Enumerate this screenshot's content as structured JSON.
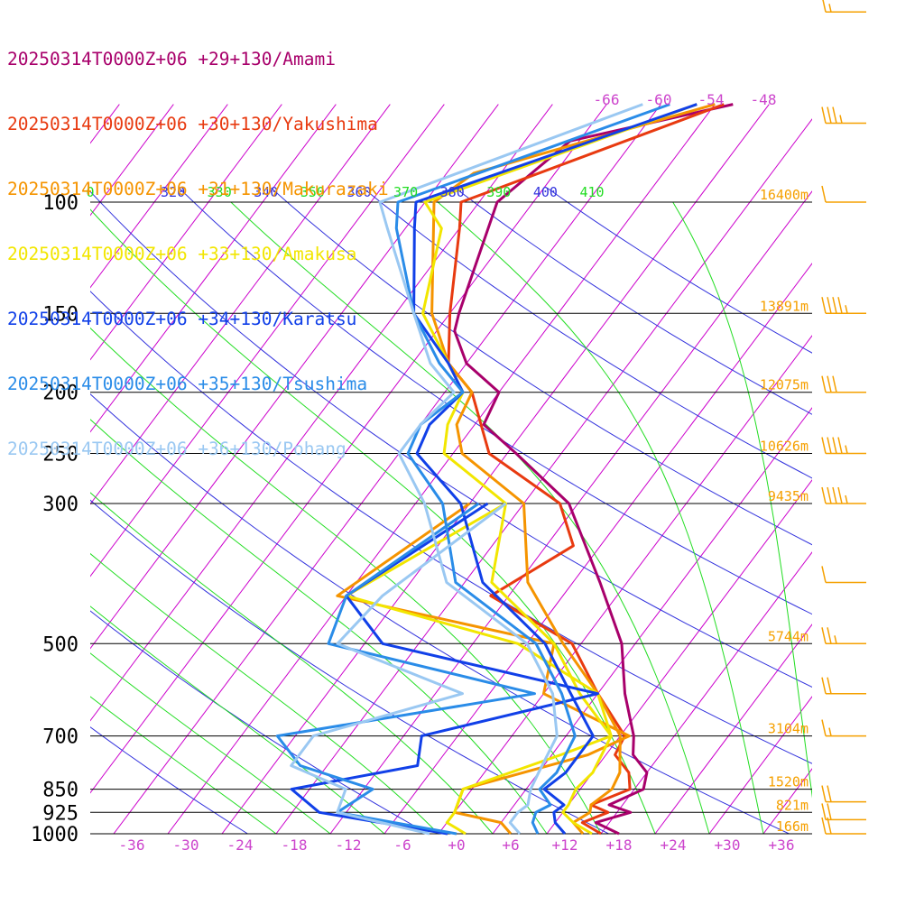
{
  "chart_data": {
    "type": "line",
    "title": "",
    "xlabel": "",
    "ylabel": "",
    "xlim": [
      -40,
      40
    ],
    "ylim": [
      1000,
      100
    ],
    "yscale": "log",
    "grid": true,
    "legend_position": "top-left",
    "pressure_ticks": [
      100,
      150,
      200,
      250,
      300,
      500,
      700,
      850,
      925,
      1000
    ],
    "pressure_tick_labels": [
      "100",
      "150",
      "200",
      "250",
      "300",
      "500",
      "700",
      "850",
      "925",
      "1000"
    ],
    "temperature_tick_labels": [
      "-36",
      "-30",
      "-24",
      "-18",
      "-12",
      "-6",
      "+0",
      "+6",
      "+12",
      "+18",
      "+24",
      "+30",
      "+36"
    ],
    "temperature_ticks": [
      -36,
      -30,
      -24,
      -18,
      -12,
      -6,
      0,
      6,
      12,
      18,
      24,
      30,
      36
    ],
    "theta_labels": [
      "0",
      "320",
      "330",
      "340",
      "350",
      "360",
      "370",
      "380",
      "390",
      "400",
      "410"
    ],
    "isotherm_labels_top": [
      "-66",
      "-60",
      "-54",
      "-48"
    ],
    "height_labels": [
      {
        "p": 100,
        "text": "16400m"
      },
      {
        "p": 150,
        "text": "13891m"
      },
      {
        "p": 200,
        "text": "12075m"
      },
      {
        "p": 250,
        "text": "10626m"
      },
      {
        "p": 300,
        "text": "9435m"
      },
      {
        "p": 500,
        "text": "5744m"
      },
      {
        "p": 700,
        "text": "3104m"
      },
      {
        "p": 850,
        "text": "1520m"
      },
      {
        "p": 925,
        "text": "821m"
      },
      {
        "p": 1000,
        "text": "166m"
      }
    ],
    "colors": {
      "isotherm": "#cc00cc",
      "dry_adiabat_blue": "#3333dd",
      "moist_adiabat_green": "#22dd22",
      "height_label": "#f5a000",
      "temp_tick_label": "#cc44cc",
      "wind_barb": "#f5a000",
      "pressure_line": "#000000"
    },
    "series": [
      {
        "name": "20250314T0000Z+06 +29+130/Amami",
        "color": "#a8006b",
        "temperature": [
          [
            1000,
            18
          ],
          [
            960,
            14.5
          ],
          [
            925,
            17.5
          ],
          [
            900,
            14.5
          ],
          [
            850,
            17
          ],
          [
            800,
            16
          ],
          [
            750,
            13
          ],
          [
            700,
            11.5
          ],
          [
            600,
            7
          ],
          [
            500,
            2.5
          ],
          [
            400,
            -5
          ],
          [
            300,
            -15
          ],
          [
            250,
            -25
          ],
          [
            225,
            -31
          ],
          [
            200,
            -32
          ],
          [
            180,
            -38
          ],
          [
            160,
            -42
          ],
          [
            150,
            -43
          ],
          [
            100,
            -48
          ],
          [
            80,
            -45
          ],
          [
            70,
            -30
          ]
        ],
        "dewpoint": []
      },
      {
        "name": "20250314T0000Z+06 +30+130/Yakushima",
        "color": "#e83a10",
        "temperature": [
          [
            1000,
            16
          ],
          [
            960,
            13
          ],
          [
            925,
            15
          ],
          [
            900,
            12.5
          ],
          [
            850,
            15.5
          ],
          [
            800,
            14
          ],
          [
            750,
            11
          ],
          [
            700,
            10.5
          ],
          [
            600,
            4
          ],
          [
            500,
            -3
          ],
          [
            420,
            -16
          ],
          [
            350,
            -11
          ],
          [
            300,
            -16
          ],
          [
            250,
            -28
          ],
          [
            200,
            -35
          ],
          [
            180,
            -40
          ],
          [
            150,
            -44
          ],
          [
            110,
            -50
          ],
          [
            100,
            -52
          ],
          [
            70,
            -31
          ]
        ],
        "dewpoint": []
      },
      {
        "name": "20250314T0000Z+06 +31+130/Makurazaki",
        "color": "#f59400",
        "temperature": [
          [
            1000,
            14
          ],
          [
            960,
            12
          ],
          [
            925,
            13
          ],
          [
            900,
            12.5
          ],
          [
            850,
            13.5
          ],
          [
            800,
            13
          ],
          [
            700,
            10
          ],
          [
            600,
            4
          ],
          [
            500,
            -4
          ],
          [
            400,
            -13
          ],
          [
            300,
            -20
          ],
          [
            250,
            -31
          ],
          [
            225,
            -34
          ],
          [
            200,
            -35
          ],
          [
            180,
            -40
          ],
          [
            150,
            -46
          ],
          [
            100,
            -55
          ],
          [
            90,
            -53
          ],
          [
            70,
            -32
          ]
        ],
        "dewpoint": [
          [
            1000,
            6
          ],
          [
            960,
            4
          ],
          [
            925,
            -2
          ],
          [
            850,
            -3
          ],
          [
            750,
            8
          ],
          [
            700,
            11
          ],
          [
            600,
            -2
          ],
          [
            500,
            -5
          ],
          [
            420,
            -33
          ],
          [
            300,
            -26
          ]
        ]
      },
      {
        "name": "20250314T0000Z+06 +33+130/Amakusa",
        "color": "#f2e600",
        "temperature": [
          [
            1000,
            15
          ],
          [
            960,
            12
          ],
          [
            925,
            10
          ],
          [
            900,
            10
          ],
          [
            850,
            9.5
          ],
          [
            800,
            10
          ],
          [
            700,
            9
          ],
          [
            600,
            2
          ],
          [
            500,
            -5
          ],
          [
            400,
            -17
          ],
          [
            300,
            -22
          ],
          [
            250,
            -33
          ],
          [
            225,
            -35
          ],
          [
            200,
            -36
          ],
          [
            180,
            -40
          ],
          [
            150,
            -47
          ],
          [
            110,
            -52
          ],
          [
            100,
            -56
          ],
          [
            70,
            -34
          ]
        ],
        "dewpoint": [
          [
            1000,
            1
          ],
          [
            960,
            -2
          ],
          [
            925,
            -2
          ],
          [
            850,
            -3
          ],
          [
            750,
            5
          ],
          [
            700,
            9
          ],
          [
            600,
            4
          ],
          [
            500,
            -9
          ],
          [
            420,
            -32
          ],
          [
            300,
            -22
          ]
        ]
      },
      {
        "name": "20250314T0000Z+06 +34+130/Karatsu",
        "color": "#1140e8",
        "temperature": [
          [
            1000,
            12
          ],
          [
            960,
            10
          ],
          [
            925,
            9
          ],
          [
            900,
            9.5
          ],
          [
            850,
            6
          ],
          [
            800,
            7
          ],
          [
            700,
            7
          ],
          [
            600,
            1
          ],
          [
            500,
            -6
          ],
          [
            400,
            -18
          ],
          [
            300,
            -27
          ],
          [
            250,
            -36
          ],
          [
            225,
            -37
          ],
          [
            200,
            -36
          ],
          [
            180,
            -40
          ],
          [
            150,
            -48
          ],
          [
            110,
            -55
          ],
          [
            100,
            -57
          ],
          [
            70,
            -34
          ]
        ],
        "dewpoint": [
          [
            1000,
            -1
          ],
          [
            925,
            -17
          ],
          [
            850,
            -22
          ],
          [
            780,
            -10
          ],
          [
            700,
            -12
          ],
          [
            600,
            4
          ],
          [
            500,
            -24
          ],
          [
            420,
            -32
          ],
          [
            300,
            -24
          ]
        ]
      },
      {
        "name": "20250314T0000Z+06 +35+130/Tsushima",
        "color": "#2a8ce8",
        "temperature": [
          [
            1000,
            9
          ],
          [
            960,
            7.5
          ],
          [
            925,
            7
          ],
          [
            900,
            8
          ],
          [
            850,
            5.5
          ],
          [
            800,
            6
          ],
          [
            700,
            5
          ],
          [
            600,
            0
          ],
          [
            500,
            -7
          ],
          [
            400,
            -21
          ],
          [
            300,
            -29
          ],
          [
            250,
            -37
          ],
          [
            225,
            -38
          ],
          [
            200,
            -36
          ],
          [
            180,
            -41
          ],
          [
            150,
            -48
          ],
          [
            110,
            -57
          ],
          [
            100,
            -59
          ],
          [
            70,
            -37
          ]
        ],
        "dewpoint": [
          [
            1000,
            0
          ],
          [
            925,
            -15
          ],
          [
            850,
            -13
          ],
          [
            780,
            -23
          ],
          [
            700,
            -28
          ],
          [
            600,
            -3
          ],
          [
            500,
            -30
          ],
          [
            420,
            -32
          ],
          [
            300,
            -25
          ]
        ]
      },
      {
        "name": "20250314T0000Z+06 +36+130/Pohang",
        "color": "#9ac8f2",
        "temperature": [
          [
            1000,
            7
          ],
          [
            960,
            5
          ],
          [
            925,
            5
          ],
          [
            900,
            5.5
          ],
          [
            850,
            4.5
          ],
          [
            800,
            4
          ],
          [
            700,
            3
          ],
          [
            600,
            -1
          ],
          [
            500,
            -8
          ],
          [
            400,
            -22
          ],
          [
            300,
            -31
          ],
          [
            250,
            -38
          ],
          [
            225,
            -38
          ],
          [
            200,
            -37
          ],
          [
            180,
            -42
          ],
          [
            150,
            -48
          ],
          [
            110,
            -58
          ],
          [
            100,
            -61
          ],
          [
            70,
            -40
          ]
        ],
        "dewpoint": [
          [
            1000,
            -3
          ],
          [
            925,
            -15
          ],
          [
            850,
            -16
          ],
          [
            780,
            -24
          ],
          [
            700,
            -24
          ],
          [
            600,
            -11
          ],
          [
            500,
            -29
          ],
          [
            420,
            -28
          ],
          [
            300,
            -22
          ]
        ]
      }
    ],
    "wind_barbs": [
      {
        "p": 1000,
        "kt": 20
      },
      {
        "p": 950,
        "kt": 20
      },
      {
        "p": 890,
        "kt": 20
      },
      {
        "p": 700,
        "kt": 15
      },
      {
        "p": 600,
        "kt": 20
      },
      {
        "p": 500,
        "kt": 25
      },
      {
        "p": 400,
        "kt": 10
      },
      {
        "p": 300,
        "kt": 45
      },
      {
        "p": 250,
        "kt": 45
      },
      {
        "p": 200,
        "kt": 30
      },
      {
        "p": 150,
        "kt": 45
      },
      {
        "p": 100,
        "kt": 10
      },
      {
        "p": 75,
        "kt": 35
      },
      {
        "p": 50,
        "kt": 15
      }
    ]
  }
}
